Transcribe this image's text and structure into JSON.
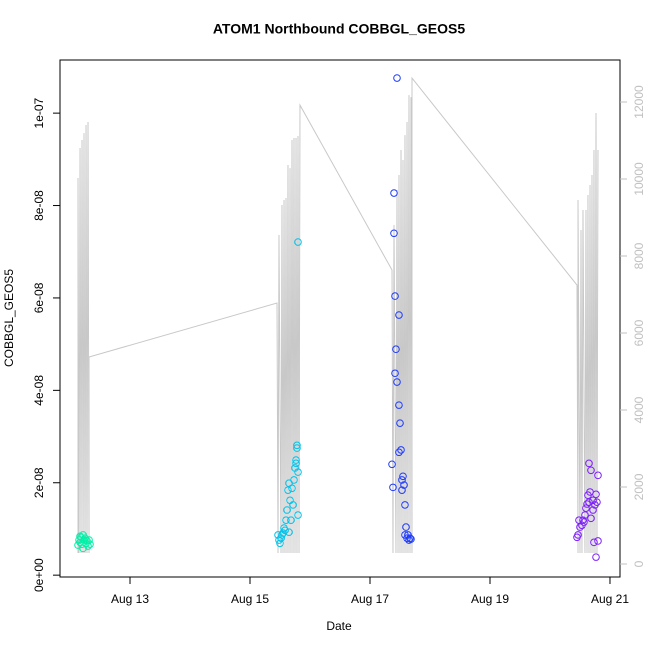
{
  "chart_data": {
    "type": "scatter",
    "title": "ATOM1 Northbound COBBGL_GEOS5",
    "x_label": "Date",
    "y_label": "COBBGL_GEOS5",
    "xlim": [
      11.833,
      21.167
    ],
    "xticks": [
      {
        "value": 13,
        "label": "Aug 13"
      },
      {
        "value": 15,
        "label": "Aug 15"
      },
      {
        "value": 17,
        "label": "Aug 17"
      },
      {
        "value": 19,
        "label": "Aug 19"
      },
      {
        "value": 21,
        "label": "Aug 21"
      }
    ],
    "ylim": [
      -4e-10,
      1.115e-07
    ],
    "yticks": [
      {
        "value": 0,
        "label": "0e+00"
      },
      {
        "value": 2e-08,
        "label": "2e-08"
      },
      {
        "value": 4e-08,
        "label": "4e-08"
      },
      {
        "value": 6e-08,
        "label": "6e-08"
      },
      {
        "value": 8e-08,
        "label": "8e-08"
      },
      {
        "value": 1e-07,
        "label": "1e-07"
      }
    ],
    "y2lim": [
      -338,
      13091
    ],
    "y2ticks": [
      0,
      2000,
      4000,
      6000,
      8000,
      10000,
      12000
    ],
    "y2_color": "#c0c0c0",
    "series": [
      {
        "type": "line",
        "axis": "y2",
        "color": "#c8c8c8",
        "x": [
          12.133,
          12.133,
          12.15,
          12.167,
          12.183,
          12.2,
          12.217,
          12.233,
          12.25,
          12.267,
          12.283,
          12.3,
          12.317,
          12.317,
          15.45,
          15.467,
          15.483,
          15.517,
          15.533,
          15.55,
          15.567,
          15.583,
          15.6,
          15.617,
          15.633,
          15.65,
          15.667,
          15.683,
          15.7,
          15.717,
          15.733,
          15.75,
          15.767,
          15.783,
          15.8,
          15.817,
          15.833,
          17.367,
          17.383,
          17.4,
          17.433,
          17.45,
          17.467,
          17.483,
          17.5,
          17.517,
          17.533,
          17.55,
          17.567,
          17.583,
          17.6,
          17.617,
          17.633,
          17.65,
          17.667,
          17.683,
          17.7,
          17.7,
          20.45,
          20.467,
          20.467,
          20.5,
          20.517,
          20.533,
          20.55,
          20.583,
          20.6,
          20.617,
          20.633,
          20.65,
          20.667,
          20.683,
          20.7,
          20.717,
          20.733,
          20.75,
          20.767,
          20.783,
          20.8
        ],
        "values": [
          286,
          10025,
          286,
          10804,
          286,
          11012,
          286,
          11193,
          286,
          11401,
          286,
          11479,
          286,
          5376,
          6778,
          286,
          8544,
          286,
          9323,
          286,
          9453,
          286,
          9505,
          286,
          10362,
          286,
          10284,
          286,
          11012,
          286,
          11064,
          286,
          11064,
          286,
          11116,
          286,
          11920,
          7635,
          286,
          8804,
          286,
          9713,
          286,
          10103,
          286,
          10752,
          286,
          10492,
          286,
          11141,
          286,
          11479,
          286,
          12180,
          286,
          12128,
          286,
          12621,
          7246,
          286,
          9453,
          286,
          8674,
          286,
          9194,
          286,
          9194,
          286,
          9583,
          286,
          9843,
          286,
          10103,
          286,
          10752,
          286,
          11713,
          286,
          10752
        ]
      },
      {
        "color": "#00f0a8",
        "x": [
          12.133,
          12.15,
          12.167,
          12.183,
          12.2,
          12.217,
          12.233,
          12.25,
          12.267,
          12.283,
          12.3,
          12.167,
          12.317,
          12.333,
          12.217
        ],
        "values": [
          6.5e-09,
          7.6e-09,
          7.1e-09,
          8.2e-09,
          6.7e-09,
          8.7e-09,
          7.6e-09,
          8e-09,
          6.9e-09,
          7.4e-09,
          6.3e-09,
          8.4e-09,
          7.6e-09,
          6.7e-09,
          5.8e-09
        ]
      },
      {
        "color": "#00c4ec",
        "x": [
          15.467,
          15.483,
          15.5,
          15.517,
          15.533,
          15.55,
          15.583,
          15.6,
          15.617,
          15.633,
          15.65,
          15.667,
          15.683,
          15.7,
          15.717,
          15.733,
          15.75,
          15.767,
          15.783,
          15.783,
          15.8,
          15.767,
          15.8,
          15.8,
          15.567,
          15.65
        ],
        "values": [
          8.7e-09,
          7.6e-09,
          6.9e-09,
          8e-09,
          8.7e-09,
          9.1e-09,
          9.7e-09,
          1.19e-08,
          1.41e-08,
          1.84e-08,
          1.99e-08,
          1.62e-08,
          1.19e-08,
          1.88e-08,
          1.52e-08,
          2.06e-08,
          2.32e-08,
          2.49e-08,
          2.75e-08,
          2.81e-08,
          2.23e-08,
          2.42e-08,
          7.21e-08,
          1.3e-08,
          1.02e-08,
          9.3e-09
        ]
      },
      {
        "color": "#1f3cff",
        "x": [
          17.45,
          17.4,
          17.4,
          17.417,
          17.483,
          17.433,
          17.417,
          17.45,
          17.483,
          17.5,
          17.517,
          17.483,
          17.367,
          17.383,
          17.55,
          17.533,
          17.567,
          17.533,
          17.583,
          17.6,
          17.583,
          17.617,
          17.633,
          17.667,
          17.683,
          17.65
        ],
        "values": [
          1.076e-07,
          8.27e-08,
          7.4e-08,
          6.04e-08,
          5.63e-08,
          4.89e-08,
          4.37e-08,
          4.18e-08,
          3.68e-08,
          3.29e-08,
          2.71e-08,
          2.66e-08,
          2.4e-08,
          1.9e-08,
          2.14e-08,
          2.06e-08,
          1.95e-08,
          1.84e-08,
          1.52e-08,
          1.04e-08,
          8.7e-09,
          8e-09,
          8.7e-09,
          8e-09,
          7.8e-09,
          7.6e-09
        ]
      },
      {
        "color": "#7f1fff",
        "x": [
          20.45,
          20.467,
          20.5,
          20.533,
          20.567,
          20.583,
          20.6,
          20.617,
          20.633,
          20.667,
          20.65,
          20.683,
          20.717,
          20.75,
          20.767,
          20.783,
          20.8,
          20.733,
          20.767,
          20.8,
          20.483,
          20.683,
          20.717,
          20.55,
          20.65
        ],
        "values": [
          8.2e-09,
          8.7e-09,
          1.04e-08,
          1.08e-08,
          1.15e-08,
          1.3e-08,
          1.45e-08,
          1.54e-08,
          1.73e-08,
          1.8e-08,
          2.42e-08,
          2.27e-08,
          1.62e-08,
          1.52e-08,
          1.75e-08,
          1.58e-08,
          2.16e-08,
          7.1e-09,
          3.9e-09,
          7.4e-09,
          1.19e-08,
          1.23e-08,
          1.41e-08,
          1.19e-08,
          1.58e-08
        ]
      }
    ]
  }
}
